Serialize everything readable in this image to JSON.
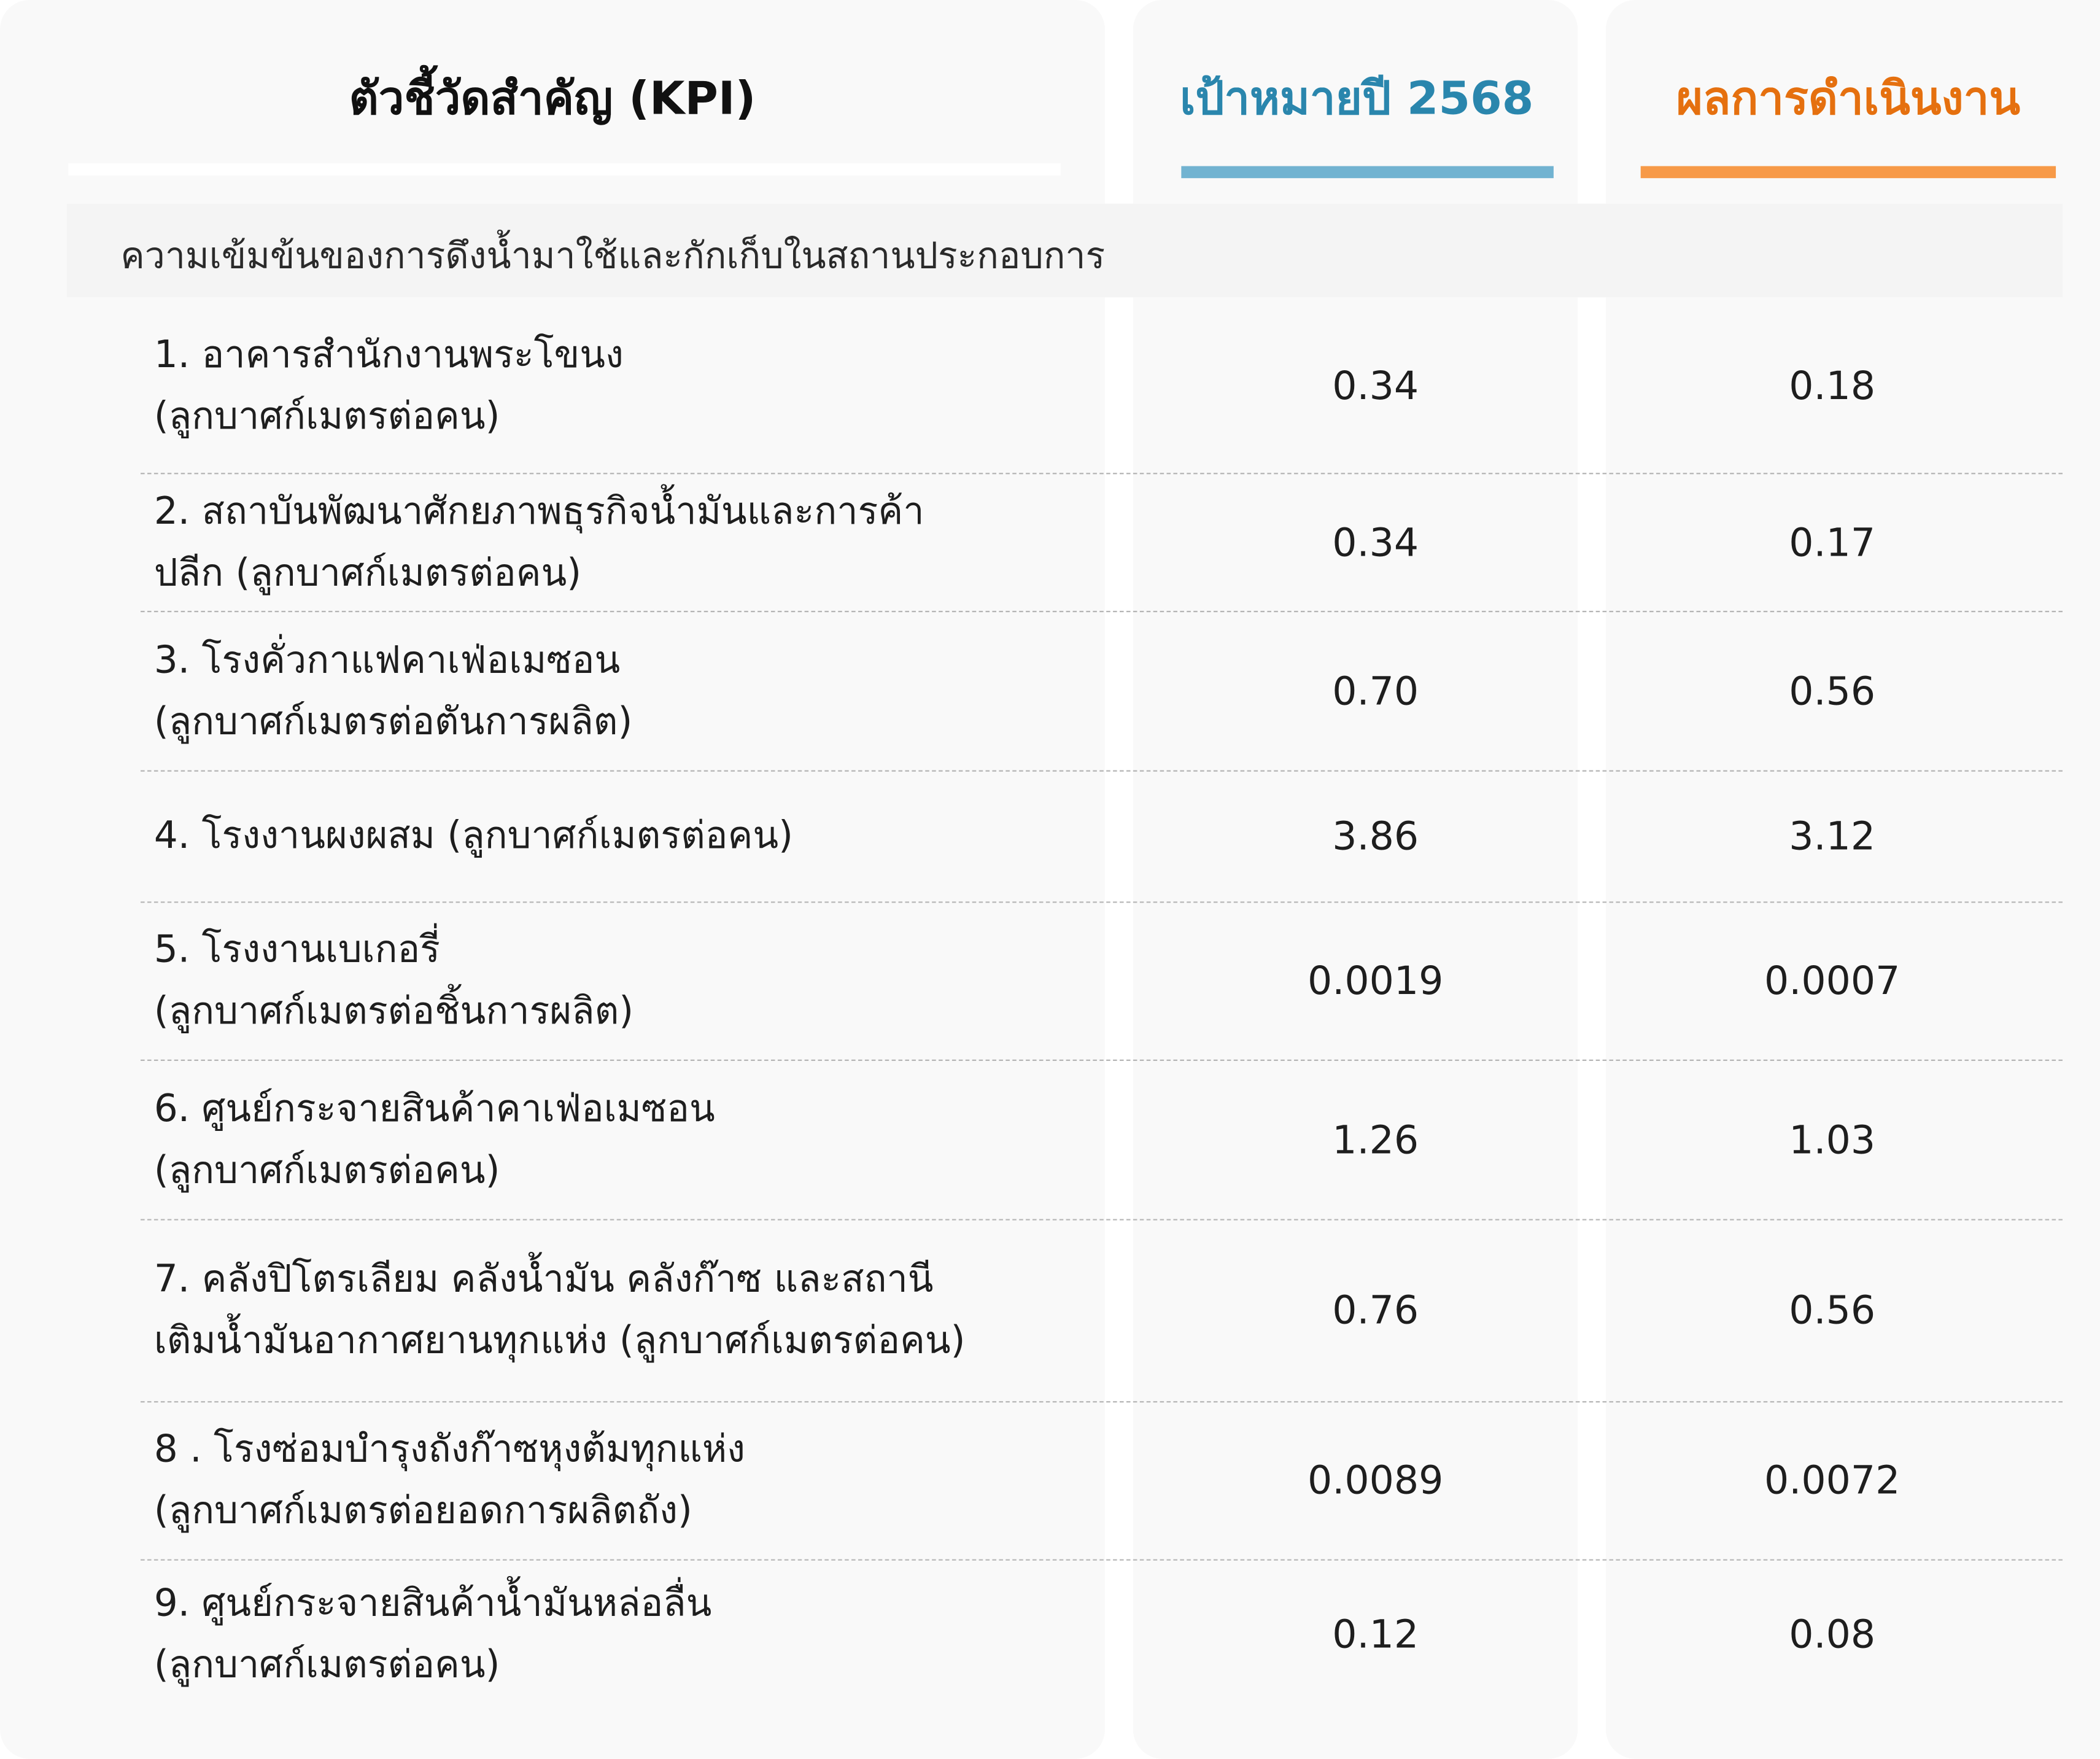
{
  "header": {
    "kpi_title": "ตัวชี้วัดสำคัญ (KPI)",
    "target_title": "เป้าหมายปี 2568",
    "result_title": "ผลการดำเนินงาน"
  },
  "colors": {
    "target_accent": "#2a86ad",
    "target_bar": "#72b3d1",
    "result_accent": "#e5700f",
    "result_bar": "#f79a48"
  },
  "section": {
    "title": "ความเข้มข้นของการดึงน้ำมาใช้และกักเก็บในสถานประกอบการ"
  },
  "rows": [
    {
      "line1": "1. อาคารสำนักงานพระโขนง",
      "line2": "(ลูกบาศก์เมตรต่อคน)",
      "target": "0.34",
      "result": "0.18"
    },
    {
      "line1": "2. สถาบันพัฒนาศักยภาพธุรกิจน้ำมันและการค้า",
      "line2": "ปลีก (ลูกบาศก์เมตรต่อคน)",
      "target": "0.34",
      "result": "0.17"
    },
    {
      "line1": "3. โรงคั่วกาแฟคาเฟ่อเมซอน",
      "line2": "(ลูกบาศก์เมตรต่อตันการผลิต)",
      "target": "0.70",
      "result": "0.56"
    },
    {
      "line1": "4. โรงงานผงผสม (ลูกบาศก์เมตรต่อคน)",
      "line2": "",
      "target": "3.86",
      "result": "3.12"
    },
    {
      "line1": "5. โรงงานเบเกอรี่",
      "line2": "(ลูกบาศก์เมตรต่อชิ้นการผลิต)",
      "target": "0.0019",
      "result": "0.0007"
    },
    {
      "line1": "6. ศูนย์กระจายสินค้าคาเฟ่อเมซอน",
      "line2": "(ลูกบาศก์เมตรต่อคน)",
      "target": "1.26",
      "result": "1.03"
    },
    {
      "line1": "7. คลังปิโตรเลียม คลังน้ำมัน คลังก๊าซ และสถานี",
      "line2": "เติมน้ำมันอากาศยานทุกแห่ง (ลูกบาศก์เมตรต่อคน)",
      "target": "0.76",
      "result": "0.56"
    },
    {
      "line1": "8 . โรงซ่อมบำรุงถังก๊าซหุงต้มทุกแห่ง",
      "line2": "(ลูกบาศก์เมตรต่อยอดการผลิตถัง)",
      "target": "0.0089",
      "result": "0.0072"
    },
    {
      "line1": "9. ศูนย์กระจายสินค้าน้ำมันหล่อลื่น",
      "line2": "(ลูกบาศก์เมตรต่อคน)",
      "target": "0.12",
      "result": "0.08"
    }
  ]
}
